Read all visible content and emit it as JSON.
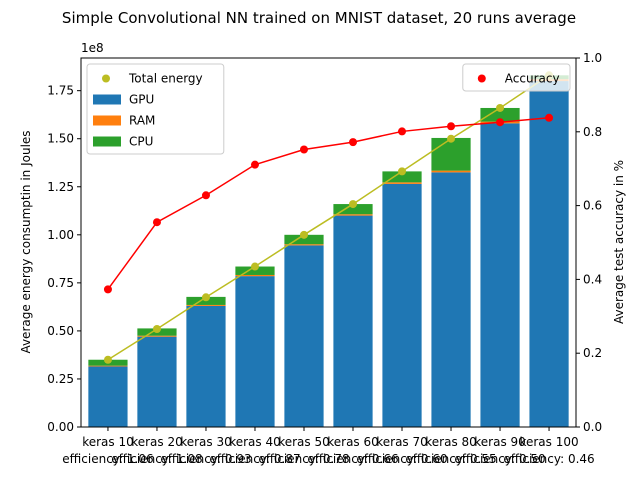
{
  "chart_data": {
    "type": "bar",
    "title": "Simple Convolutional NN trained on MNIST dataset, 20 runs average",
    "ylabel_left": "Average energy consumptin in Joules",
    "ylabel_right": "Average test accuracy in %",
    "left_axis_multiplier": "1e8",
    "ylim_left": [
      0,
      192000000.0
    ],
    "ylim_right": [
      0,
      1.0
    ],
    "left_ticks": [
      "0.00",
      "0.25",
      "0.50",
      "0.75",
      "1.00",
      "1.25",
      "1.50",
      "1.75"
    ],
    "left_tick_values": [
      0,
      25000000.0,
      50000000.0,
      75000000.0,
      100000000.0,
      125000000.0,
      150000000.0,
      175000000.0
    ],
    "right_ticks": [
      "0.0",
      "0.2",
      "0.4",
      "0.6",
      "0.8",
      "1.0"
    ],
    "right_tick_values": [
      0,
      0.2,
      0.4,
      0.6,
      0.8,
      1.0
    ],
    "categories": [
      {
        "line1": "keras 10",
        "line2": "efficiency: 1.06"
      },
      {
        "line1": "keras 20",
        "line2": "efficiency: 1.08"
      },
      {
        "line1": "keras 30",
        "line2": "efficiency: 0.93"
      },
      {
        "line1": "keras 40",
        "line2": "efficiency: 0.87"
      },
      {
        "line1": "keras 50",
        "line2": "efficiency: 0.78"
      },
      {
        "line1": "keras 60",
        "line2": "efficiency: 0.66"
      },
      {
        "line1": "keras 70",
        "line2": "efficiency: 0.60"
      },
      {
        "line1": "keras 80",
        "line2": "efficiency: 0.55"
      },
      {
        "line1": "keras 90",
        "line2": "efficiency: 0.50"
      },
      {
        "line1": "keras 100",
        "line2": "efficiency: 0.46"
      }
    ],
    "series": [
      {
        "name": "GPU",
        "color": "#1f77b4",
        "values": [
          31500000.0,
          47000000.0,
          63000000.0,
          78500000.0,
          94500000.0,
          110000000.0,
          126500000.0,
          132500000.0,
          158000000.0,
          180000000.0
        ]
      },
      {
        "name": "RAM",
        "color": "#ff7f0e",
        "values": [
          400000.0,
          500000.0,
          500000.0,
          600000.0,
          600000.0,
          700000.0,
          800000.0,
          900000.0,
          900000.0,
          1000000.0
        ]
      },
      {
        "name": "CPU",
        "color": "#2ca02c",
        "values": [
          3100000.0,
          3800000.0,
          4200000.0,
          4400000.0,
          4900000.0,
          5300000.0,
          5700000.0,
          17000000.0,
          7100000.0,
          2000000.0
        ]
      },
      {
        "name": "Total energy",
        "color": "#bcbd22",
        "kind": "line",
        "axis": "left",
        "values": [
          35000000.0,
          51000000.0,
          67500000.0,
          83500000.0,
          100000000.0,
          116000000.0,
          133000000.0,
          150000000.0,
          166000000.0,
          183000000.0
        ]
      },
      {
        "name": "Accuracy",
        "color": "#ff0000",
        "kind": "line",
        "axis": "right",
        "values": [
          0.373,
          0.555,
          0.628,
          0.711,
          0.752,
          0.772,
          0.801,
          0.815,
          0.826,
          0.838
        ]
      }
    ],
    "legend_left": [
      "Total energy",
      "GPU",
      "RAM",
      "CPU"
    ],
    "legend_right": [
      "Accuracy"
    ],
    "legend_left_placement": "top-left",
    "legend_right_placement": "top-right",
    "grid": false
  }
}
